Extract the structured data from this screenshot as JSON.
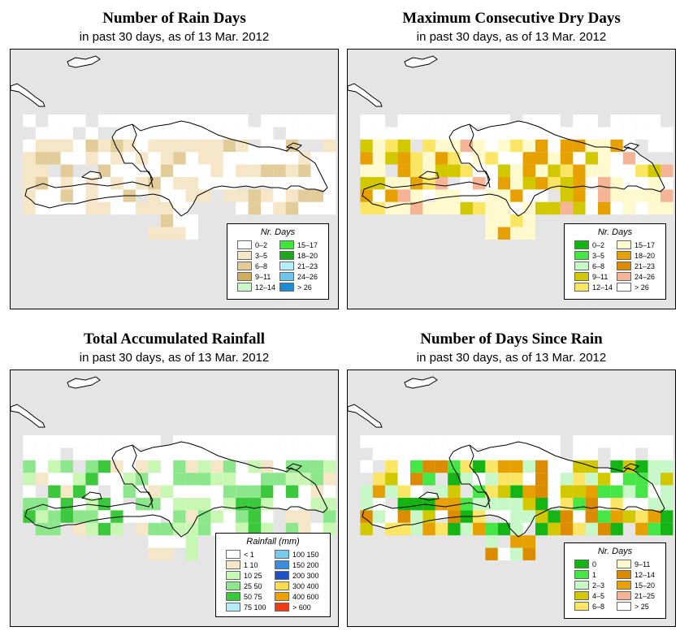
{
  "colors": {
    "map_bg": "#e5e5e5",
    "land": "#ffffff",
    "coast": "#000000"
  },
  "panels": [
    {
      "id": "rain-days",
      "title": "Number of Rain Days",
      "subtitle": "in past 30 days, as of  13 Mar. 2012",
      "legend": {
        "title": "Nr. Days",
        "items": [
          {
            "label": "0–2",
            "color": "#ffffff"
          },
          {
            "label": "3–5",
            "color": "#f5e6c8"
          },
          {
            "label": "6–8",
            "color": "#e2cc9a"
          },
          {
            "label": "9–11",
            "color": "#cfae5e"
          },
          {
            "label": "12–14",
            "color": "#c9f7c9"
          },
          {
            "label": "15–17",
            "color": "#3ce63c"
          },
          {
            "label": "18–20",
            "color": "#1ea81e"
          },
          {
            "label": "21–23",
            "color": "#b4ecf7"
          },
          {
            "label": "24–26",
            "color": "#6ec6ee"
          },
          {
            "label": "> 26",
            "color": "#1e8cd2"
          }
        ]
      }
    },
    {
      "id": "max-dry",
      "title": "Maximum Consecutive Dry Days",
      "subtitle": "in past 30 days, as of  13 Mar. 2012",
      "legend": {
        "title": "Nr. Days",
        "items": [
          {
            "label": "0–2",
            "color": "#14b414"
          },
          {
            "label": "3–5",
            "color": "#46e646"
          },
          {
            "label": "6–8",
            "color": "#c8f7c8"
          },
          {
            "label": "9–11",
            "color": "#d2c800"
          },
          {
            "label": "12–14",
            "color": "#fae664"
          },
          {
            "label": "15–17",
            "color": "#fffacd"
          },
          {
            "label": "18–20",
            "color": "#e6a000"
          },
          {
            "label": "21–23",
            "color": "#dc8c00"
          },
          {
            "label": "24–26",
            "color": "#f5b496"
          },
          {
            "label": "> 26",
            "color": "#ffffff"
          }
        ]
      }
    },
    {
      "id": "total-rain",
      "title": "Total Accumulated Rainfall",
      "subtitle": "in past 30 days, as of  13 Mar. 2012",
      "legend": {
        "title": "Rainfall (mm)",
        "items": [
          {
            "label": "< 1",
            "color": "#ffffff"
          },
          {
            "label": "1    10",
            "color": "#f5e6c8"
          },
          {
            "label": "10    25",
            "color": "#c8f7b4"
          },
          {
            "label": "25    50",
            "color": "#8ce68c"
          },
          {
            "label": "50    75",
            "color": "#3cc83c"
          },
          {
            "label": "75  100",
            "color": "#b4ecf7"
          },
          {
            "label": "100  150",
            "color": "#78c8f0"
          },
          {
            "label": "150  200",
            "color": "#3c8cdc"
          },
          {
            "label": "200  300",
            "color": "#1e50c8"
          },
          {
            "label": "300  400",
            "color": "#fadc50"
          },
          {
            "label": "400  600",
            "color": "#f0a000"
          },
          {
            "label": "> 600",
            "color": "#f03c14"
          }
        ]
      }
    },
    {
      "id": "days-since",
      "title": "Number of Days Since Rain",
      "subtitle": "in past 30 days, as of  13 Mar. 2012",
      "legend": {
        "title": "Nr. Days",
        "items": [
          {
            "label": "0",
            "color": "#14b414"
          },
          {
            "label": "1",
            "color": "#46e646"
          },
          {
            "label": "2–3",
            "color": "#c8f7c8"
          },
          {
            "label": "4–5",
            "color": "#d2c800"
          },
          {
            "label": "6–8",
            "color": "#fae664"
          },
          {
            "label": "9–11",
            "color": "#fffacd"
          },
          {
            "label": "12–14",
            "color": "#dc8c00"
          },
          {
            "label": "15–20",
            "color": "#e6a000"
          },
          {
            "label": "21–25",
            "color": "#f5b496"
          },
          {
            "label": "> 25",
            "color": "#ffffff"
          }
        ]
      }
    }
  ]
}
